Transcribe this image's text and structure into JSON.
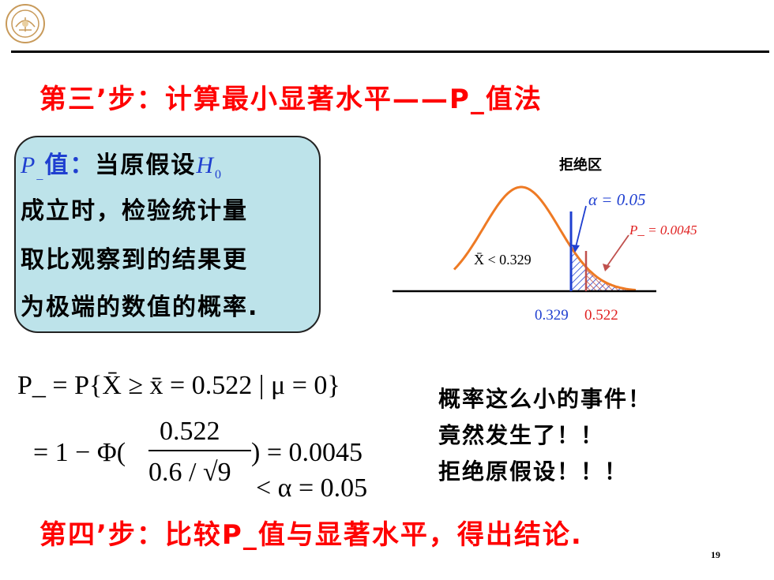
{
  "slide": {
    "title": "第三’步：计算最小显著水平——P_值法",
    "page_number": "19"
  },
  "definition": {
    "p_label": "P",
    "p_sub": "_",
    "value_label": "值：",
    "line1_text": "当原假设",
    "h_symbol": "H",
    "h_sub": "0",
    "line2": "成立时，检验统计量",
    "line3": "取比观察到的结果更",
    "line4": "为极端的数值的概率."
  },
  "chart_data": {
    "type": "area",
    "title": "拒绝区",
    "annotations": {
      "alpha": "α = 0.05",
      "p_value": "P_ = 0.0045",
      "acceptance": "X̄ < 0.329",
      "critical_value": "0.329",
      "observed_value": "0.522"
    },
    "curve": "normal",
    "rejection_region": {
      "from": 0.329,
      "area": 0.05
    },
    "p_region": {
      "from": 0.522,
      "area": 0.0045
    },
    "colors": {
      "curve": "#ee7a24",
      "alpha": "#1f3fd0",
      "p_value": "#e02020",
      "p_line": "#c0504d",
      "baseline": "#000000"
    }
  },
  "formula": {
    "line1": "P_ = P{X̄ ≥ x̄ = 0.522 | μ = 0}",
    "line2_prefix": "= 1 − Φ(",
    "frac_num": "0.522",
    "frac_den": "0.6 / √9",
    "line2_suffix": ") = 0.0045",
    "line3": "< α = 0.05"
  },
  "remarks": {
    "line1": "概率这么小的事件！",
    "line2": "竟然发生了！！",
    "line3": "拒绝原假设！！！"
  },
  "step4": "第四’步：比较P_值与显著水平，得出结论."
}
